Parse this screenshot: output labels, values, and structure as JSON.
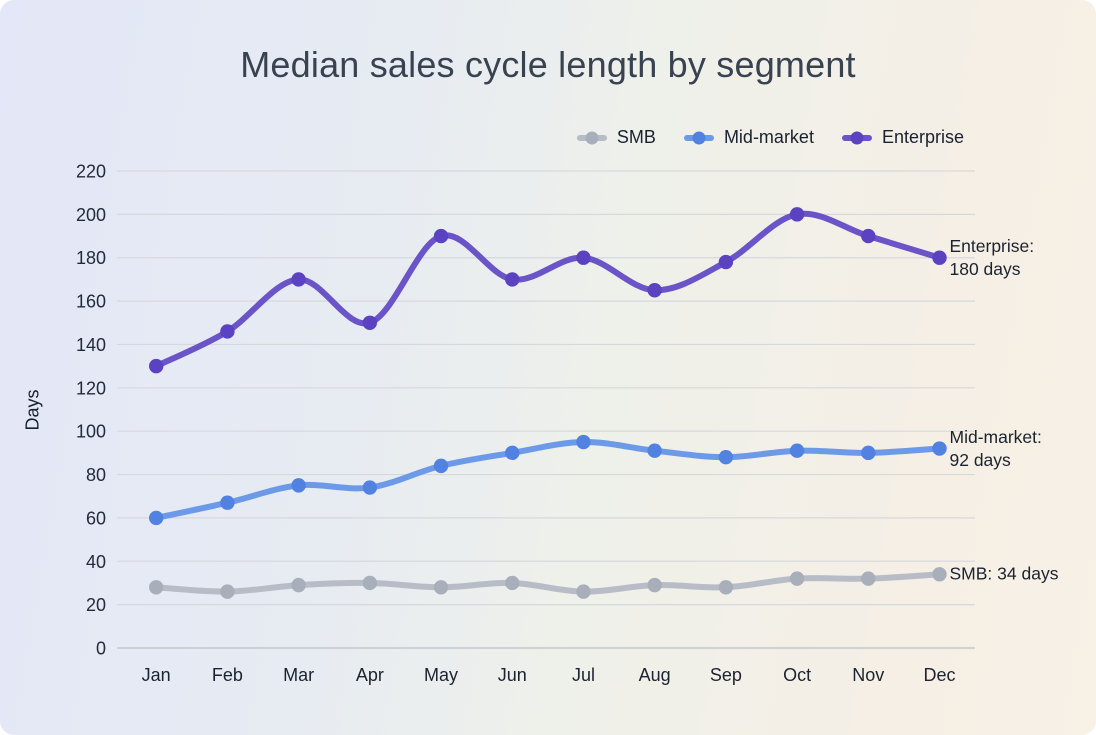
{
  "chart_data": {
    "type": "line",
    "title": "Median sales cycle length by segment",
    "ylabel": "Days",
    "xlabel": "",
    "categories": [
      "Jan",
      "Feb",
      "Mar",
      "Apr",
      "May",
      "Jun",
      "Jul",
      "Aug",
      "Sep",
      "Oct",
      "Nov",
      "Dec"
    ],
    "y_ticks": [
      0,
      20,
      40,
      60,
      80,
      100,
      120,
      140,
      160,
      180,
      200,
      220
    ],
    "ylim": [
      0,
      230
    ],
    "grid": "horizontal-only",
    "grid_color": "#d6d9dc",
    "axis_line_color": "#c3c7cd",
    "legend_position": "top-right",
    "series": [
      {
        "name": "SMB",
        "color": "#b7bcc6",
        "dot_color": "#a9afba",
        "values": [
          28,
          26,
          29,
          30,
          28,
          30,
          26,
          29,
          28,
          32,
          32,
          34
        ]
      },
      {
        "name": "Mid-market",
        "color": "#6d9ae8",
        "dot_color": "#5182e2",
        "values": [
          60,
          67,
          75,
          74,
          84,
          90,
          95,
          91,
          88,
          91,
          90,
          92
        ]
      },
      {
        "name": "Enterprise",
        "color": "#6a54c7",
        "dot_color": "#5b42c0",
        "values": [
          130,
          146,
          170,
          150,
          190,
          170,
          180,
          165,
          178,
          200,
          190,
          180
        ]
      }
    ],
    "annotations": [
      {
        "series": "Enterprise",
        "line1": "Enterprise:",
        "line2": "180 days"
      },
      {
        "series": "Mid-market",
        "line1": "Mid-market:",
        "line2": "92 days"
      },
      {
        "series": "SMB",
        "line1": "SMB: 34 days",
        "line2": ""
      }
    ]
  },
  "colors": {
    "background_left": "#e3e7f7",
    "background_right": "#f7f1e6",
    "title_text": "#394250",
    "tick_text": "#232a39",
    "annotation_text": "#1b2330"
  }
}
